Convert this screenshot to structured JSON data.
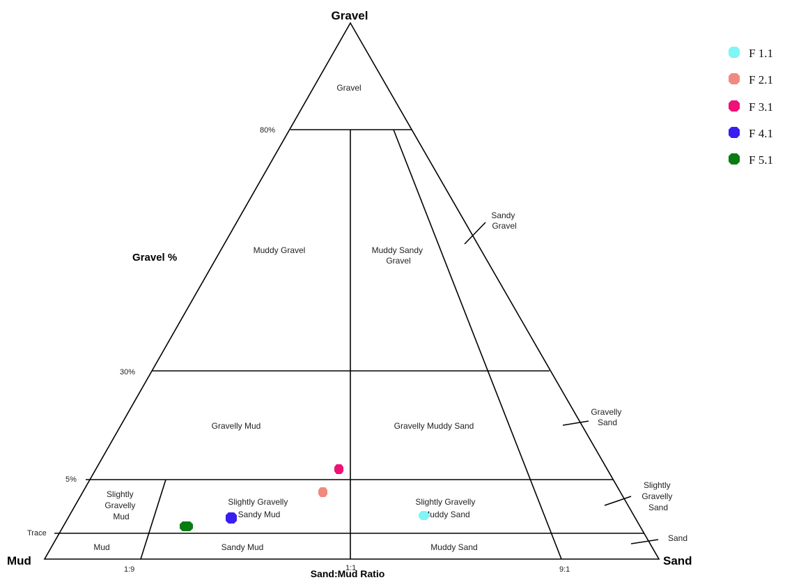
{
  "vertices": {
    "top": "Gravel",
    "left": "Mud",
    "right": "Sand"
  },
  "axis_labels": {
    "gravel_axis": "Gravel %",
    "ratio_axis": "Sand:Mud Ratio"
  },
  "gravel_ticks": {
    "t80": "80%",
    "t30": "30%",
    "t5": "5%",
    "trace": "Trace"
  },
  "ratio_ticks": {
    "r19": "1:9",
    "r11": "1:1",
    "r91": "9:1"
  },
  "regions": {
    "gravel": [
      "Gravel"
    ],
    "sandy_gravel": [
      "Sandy",
      "Gravel"
    ],
    "muddy_gravel": [
      "Muddy  Gravel"
    ],
    "muddy_sandy_gravel": [
      "Muddy  Sandy",
      "Gravel"
    ],
    "gravelly_mud": [
      "Gravelly  Mud"
    ],
    "gravelly_muddy_sand": [
      "Gravelly  Muddy  Sand"
    ],
    "gravelly_sand": [
      "Gravelly",
      "Sand"
    ],
    "slightly_gravelly_mud": [
      "Slightly",
      "Gravelly",
      "Mud"
    ],
    "slightly_gravelly_sandy_mud": [
      "Slightly  Gravelly",
      "Sandy  Mud"
    ],
    "slightly_gravelly_muddy_sand": [
      "Slightly  Gravelly",
      "Muddy  Sand"
    ],
    "slightly_gravelly_sand": [
      "Slightly",
      "Gravelly",
      "Sand"
    ],
    "mud": [
      "Mud"
    ],
    "sandy_mud": [
      "Sandy  Mud"
    ],
    "muddy_sand": [
      "Muddy  Sand"
    ],
    "sand": [
      "Sand"
    ]
  },
  "samples": [
    {
      "name": "F 1.1",
      "color": "#7ff5f5",
      "shape": "octagon"
    },
    {
      "name": "F 2.1",
      "color": "#f08a80",
      "shape": "octagon"
    },
    {
      "name": "F 3.1",
      "color": "#ee1177",
      "shape": "octagon"
    },
    {
      "name": "F 4.1",
      "color": "#3a1ef0",
      "shape": "octagon"
    },
    {
      "name": "F 5.1",
      "color": "#0a7a12",
      "shape": "octagon"
    }
  ]
}
